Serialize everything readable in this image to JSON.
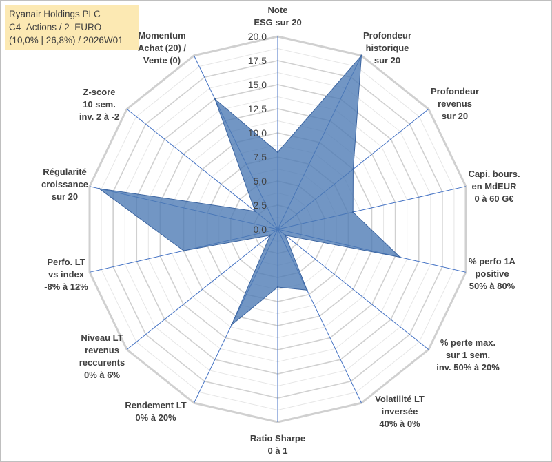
{
  "header": {
    "lines": [
      "Ryanair Holdings PLC",
      "C4_Actions / 2_EURO",
      "(10,0% | 26,8%) / 2026W01"
    ]
  },
  "chart_data": {
    "type": "radar",
    "title": "Ryanair Holdings PLC",
    "rmin": 0,
    "rmax": 20,
    "ticks": [
      "0,0",
      "2,5",
      "5,0",
      "7,5",
      "10,0",
      "12,5",
      "15,0",
      "17,5",
      "20,0"
    ],
    "tick_values": [
      0,
      2.5,
      5,
      7.5,
      10,
      12.5,
      15,
      17.5,
      20
    ],
    "axes": [
      {
        "label": [
          "Note",
          "ESG sur 20"
        ]
      },
      {
        "label": [
          "Profondeur",
          "historique",
          "sur 20"
        ]
      },
      {
        "label": [
          "Profondeur",
          "revenus",
          "sur 20"
        ]
      },
      {
        "label": [
          "Capi. bours.",
          "en MdEUR",
          "0 à 60 G€"
        ]
      },
      {
        "label": [
          "% perfo 1A",
          "positive",
          "50% à 80%"
        ]
      },
      {
        "label": [
          "% perte max.",
          "sur 1 sem.",
          "inv. 50% à 20%"
        ]
      },
      {
        "label": [
          "Volatilité LT",
          "inversée",
          "40% à 0%"
        ]
      },
      {
        "label": [
          "Ratio Sharpe",
          "0 à 1"
        ]
      },
      {
        "label": [
          "Rendement LT",
          "0% à 20%"
        ]
      },
      {
        "label": [
          "Niveau LT",
          "revenus",
          "reccurents",
          "0% à 6%"
        ]
      },
      {
        "label": [
          "Perfo. LT",
          "vs index",
          "-8% à 12%"
        ]
      },
      {
        "label": [
          "Régularité",
          "croissance",
          "sur 20"
        ]
      },
      {
        "label": [
          "Z-score",
          "10 sem.",
          "inv. 2 à -2"
        ]
      },
      {
        "label": [
          "Momentum",
          "Achat (20) /",
          "Vente (0)"
        ]
      }
    ],
    "series": [
      {
        "name": "Ryanair Holdings PLC",
        "color": "#4a78b4",
        "values": [
          8,
          20,
          10,
          8,
          13,
          1,
          7,
          6,
          11,
          1,
          10,
          19,
          3,
          15
        ]
      }
    ],
    "colors": {
      "grid": "#d9d9d9",
      "spoke": "#4472c4",
      "fill": "#4a78b4"
    }
  }
}
